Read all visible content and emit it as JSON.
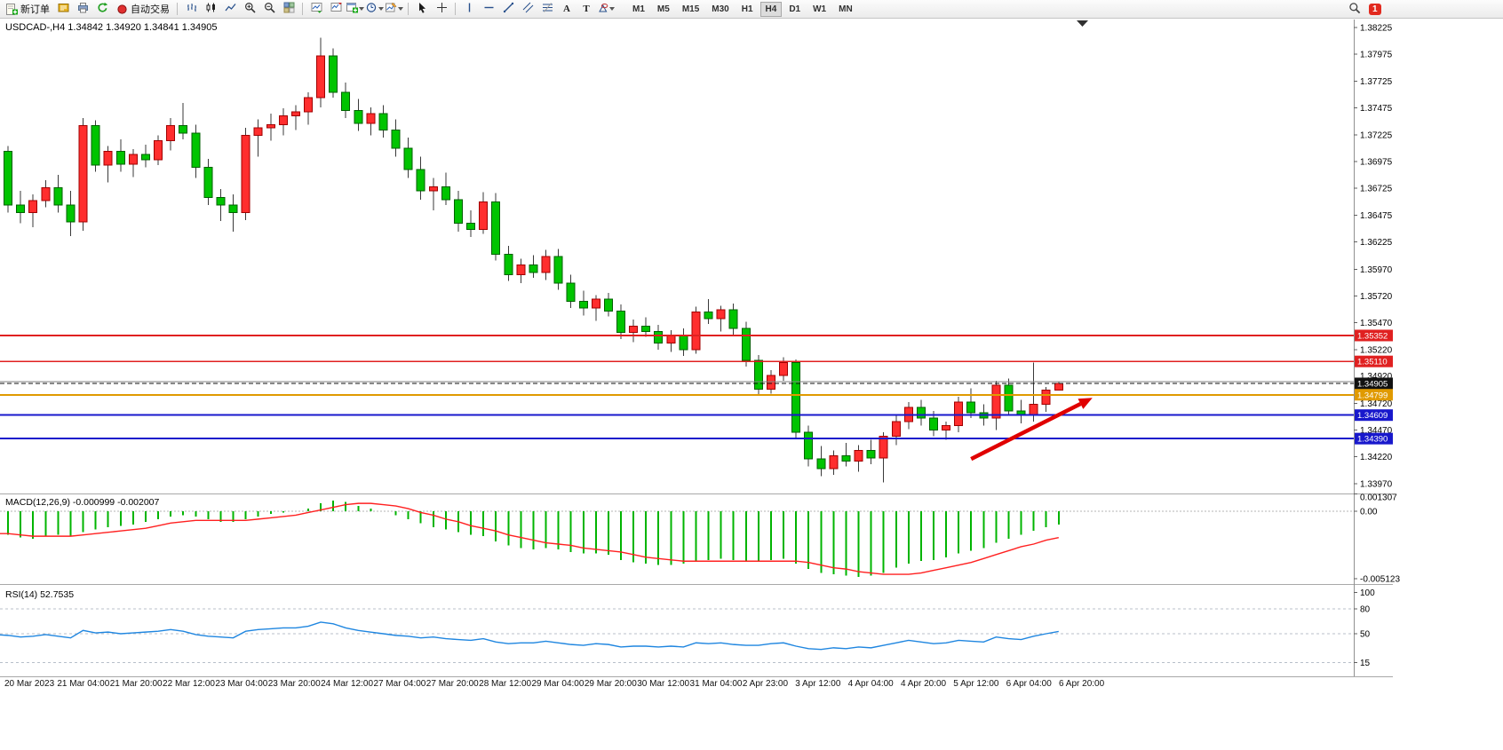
{
  "toolbar": {
    "new_order_label": "新订单",
    "auto_trading_label": "自动交易",
    "text_tool_glyph": "A",
    "label_tool_glyph": "T",
    "timeframes": [
      "M1",
      "M5",
      "M15",
      "M30",
      "H1",
      "H4",
      "D1",
      "W1",
      "MN"
    ],
    "active_timeframe": "H4",
    "notification_count": "1"
  },
  "chart_data": [
    {
      "type": "candlestick",
      "title": "USDCAD-,H4 1.34842 1.34920 1.34841 1.34905",
      "symbol": "USDCAD-",
      "timeframe": "H4",
      "ohlc_current": {
        "open": "1.34842",
        "high": "1.34920",
        "low": "1.34841",
        "close": "1.34905"
      },
      "up_color": "#ff2e2e",
      "up_edge": "#a00000",
      "down_color": "#00c400",
      "down_edge": "#006000",
      "ylim": [
        1.3394,
        1.3828
      ],
      "y_ticks": [
        "1.38225",
        "1.37975",
        "1.37725",
        "1.37475",
        "1.37225",
        "1.36975",
        "1.36725",
        "1.36475",
        "1.36225",
        "1.35970",
        "1.35720",
        "1.35470",
        "1.35220",
        "1.34720",
        "1.34470",
        "1.34220",
        "1.33970"
      ],
      "price_badges": [
        {
          "value": "1.35352",
          "bg": "#e02020",
          "fg": "#ffffff"
        },
        {
          "value": "1.35110",
          "bg": "#e02020",
          "fg": "#ffffff"
        },
        {
          "value": "1.34920",
          "bg": "",
          "fg": "#000000"
        },
        {
          "value": "1.34905",
          "bg": "#111111",
          "fg": "#ffffff"
        },
        {
          "value": "1.34799",
          "bg": "#e09a00",
          "fg": "#ffffff"
        },
        {
          "value": "1.34609",
          "bg": "#1818cc",
          "fg": "#ffffff"
        },
        {
          "value": "1.34390",
          "bg": "#1818cc",
          "fg": "#ffffff"
        }
      ],
      "levels": [
        {
          "price": 1.35352,
          "color": "#e02020",
          "style": "solid",
          "width": 1.6
        },
        {
          "price": 1.3511,
          "color": "#e02020",
          "style": "solid",
          "width": 1.6
        },
        {
          "price": 1.3492,
          "color": "#808080",
          "style": "solid",
          "width": 1
        },
        {
          "price": 1.34905,
          "color": "#111111",
          "style": "dashed",
          "width": 1.2
        },
        {
          "price": 1.34799,
          "color": "#e09a00",
          "style": "solid",
          "width": 2
        },
        {
          "price": 1.34609,
          "color": "#1818cc",
          "style": "solid",
          "width": 2
        },
        {
          "price": 1.3439,
          "color": "#1818cc",
          "style": "solid",
          "width": 2
        }
      ],
      "arrow": {
        "from_index": 78,
        "from_price": 1.342,
        "to_index": 87.7,
        "to_price": 1.3477,
        "color": "#e00000"
      },
      "x_labels": [
        "20 Mar 2023",
        "21 Mar 04:00",
        "21 Mar 20:00",
        "22 Mar 12:00",
        "23 Mar 04:00",
        "23 Mar 20:00",
        "24 Mar 12:00",
        "27 Mar 04:00",
        "27 Mar 20:00",
        "28 Mar 12:00",
        "29 Mar 04:00",
        "29 Mar 20:00",
        "30 Mar 12:00",
        "31 Mar 04:00",
        "2 Apr 23:00",
        "3 Apr 12:00",
        "4 Apr 04:00",
        "4 Apr 20:00",
        "5 Apr 12:00",
        "6 Apr 04:00",
        "6 Apr 20:00"
      ],
      "candles": [
        [
          1.3716,
          1.3721,
          1.3652,
          1.366
        ],
        [
          1.3707,
          1.3712,
          1.365,
          1.3657
        ],
        [
          1.3657,
          1.367,
          1.364,
          1.365
        ],
        [
          1.365,
          1.3667,
          1.3636,
          1.3661
        ],
        [
          1.3661,
          1.368,
          1.3655,
          1.3673
        ],
        [
          1.3673,
          1.3685,
          1.365,
          1.3657
        ],
        [
          1.3657,
          1.367,
          1.3628,
          1.3641
        ],
        [
          1.3641,
          1.3738,
          1.3633,
          1.3731
        ],
        [
          1.3731,
          1.3736,
          1.3688,
          1.3694
        ],
        [
          1.3694,
          1.3712,
          1.3678,
          1.3707
        ],
        [
          1.3707,
          1.3718,
          1.3688,
          1.3695
        ],
        [
          1.3695,
          1.3709,
          1.3683,
          1.3704
        ],
        [
          1.3704,
          1.3713,
          1.3692,
          1.3699
        ],
        [
          1.3699,
          1.3722,
          1.3694,
          1.3717
        ],
        [
          1.3717,
          1.3738,
          1.3708,
          1.3731
        ],
        [
          1.3731,
          1.3752,
          1.3718,
          1.3724
        ],
        [
          1.3724,
          1.3732,
          1.3682,
          1.3692
        ],
        [
          1.3692,
          1.37,
          1.3657,
          1.3664
        ],
        [
          1.3664,
          1.3672,
          1.3642,
          1.3657
        ],
        [
          1.3657,
          1.3667,
          1.3632,
          1.365
        ],
        [
          1.365,
          1.3729,
          1.3643,
          1.3722
        ],
        [
          1.3722,
          1.3737,
          1.3702,
          1.3729
        ],
        [
          1.3729,
          1.3742,
          1.3717,
          1.3732
        ],
        [
          1.3732,
          1.3747,
          1.3722,
          1.374
        ],
        [
          1.374,
          1.375,
          1.3727,
          1.3744
        ],
        [
          1.3744,
          1.3762,
          1.3732,
          1.3757
        ],
        [
          1.3757,
          1.3813,
          1.3748,
          1.3796
        ],
        [
          1.3796,
          1.3803,
          1.3757,
          1.3762
        ],
        [
          1.3762,
          1.3771,
          1.3738,
          1.3745
        ],
        [
          1.3745,
          1.3756,
          1.3726,
          1.3733
        ],
        [
          1.3733,
          1.3748,
          1.3722,
          1.3742
        ],
        [
          1.3742,
          1.375,
          1.372,
          1.3727
        ],
        [
          1.3727,
          1.3737,
          1.3702,
          1.371
        ],
        [
          1.371,
          1.372,
          1.3682,
          1.369
        ],
        [
          1.369,
          1.3702,
          1.3662,
          1.367
        ],
        [
          1.367,
          1.3682,
          1.3652,
          1.3674
        ],
        [
          1.3674,
          1.3687,
          1.3657,
          1.3662
        ],
        [
          1.3662,
          1.367,
          1.3632,
          1.364
        ],
        [
          1.364,
          1.3652,
          1.3627,
          1.3634
        ],
        [
          1.3634,
          1.3669,
          1.363,
          1.366
        ],
        [
          1.366,
          1.3668,
          1.3605,
          1.3611
        ],
        [
          1.3611,
          1.3619,
          1.3586,
          1.3592
        ],
        [
          1.3592,
          1.3607,
          1.3584,
          1.3601
        ],
        [
          1.3601,
          1.361,
          1.3589,
          1.3594
        ],
        [
          1.3594,
          1.3615,
          1.3587,
          1.3609
        ],
        [
          1.3609,
          1.3616,
          1.3578,
          1.3584
        ],
        [
          1.3584,
          1.3592,
          1.3561,
          1.3567
        ],
        [
          1.3567,
          1.3577,
          1.3554,
          1.3561
        ],
        [
          1.3561,
          1.3573,
          1.3549,
          1.3569
        ],
        [
          1.3569,
          1.3575,
          1.3553,
          1.3558
        ],
        [
          1.3558,
          1.3564,
          1.3532,
          1.3538
        ],
        [
          1.3538,
          1.355,
          1.3529,
          1.3544
        ],
        [
          1.3544,
          1.3552,
          1.3534,
          1.3539
        ],
        [
          1.3539,
          1.3545,
          1.3522,
          1.3528
        ],
        [
          1.3528,
          1.354,
          1.352,
          1.3535
        ],
        [
          1.3535,
          1.3542,
          1.3516,
          1.3522
        ],
        [
          1.3522,
          1.3562,
          1.3518,
          1.3557
        ],
        [
          1.3557,
          1.3569,
          1.3546,
          1.3551
        ],
        [
          1.3551,
          1.3563,
          1.3539,
          1.3559
        ],
        [
          1.3559,
          1.3565,
          1.3536,
          1.3542
        ],
        [
          1.3542,
          1.3548,
          1.3506,
          1.3512
        ],
        [
          1.3512,
          1.3517,
          1.3479,
          1.3485
        ],
        [
          1.3485,
          1.3503,
          1.3481,
          1.3498
        ],
        [
          1.3498,
          1.3515,
          1.3493,
          1.351
        ],
        [
          1.351,
          1.3513,
          1.3439,
          1.3445
        ],
        [
          1.3445,
          1.3451,
          1.3413,
          1.342
        ],
        [
          1.342,
          1.3432,
          1.3404,
          1.3411
        ],
        [
          1.3411,
          1.3428,
          1.3405,
          1.3423
        ],
        [
          1.3423,
          1.3435,
          1.3413,
          1.3418
        ],
        [
          1.3418,
          1.3433,
          1.3408,
          1.3428
        ],
        [
          1.3428,
          1.3438,
          1.3415,
          1.3421
        ],
        [
          1.3421,
          1.3445,
          1.3398,
          1.3441
        ],
        [
          1.3441,
          1.3461,
          1.3433,
          1.3455
        ],
        [
          1.3455,
          1.3473,
          1.3448,
          1.3468
        ],
        [
          1.3468,
          1.3475,
          1.3451,
          1.3458
        ],
        [
          1.3458,
          1.3465,
          1.3441,
          1.3447
        ],
        [
          1.3447,
          1.3455,
          1.3438,
          1.3451
        ],
        [
          1.3451,
          1.3478,
          1.3445,
          1.3473
        ],
        [
          1.3473,
          1.3486,
          1.3458,
          1.3463
        ],
        [
          1.3463,
          1.3471,
          1.3451,
          1.3458
        ],
        [
          1.3458,
          1.3493,
          1.3447,
          1.3489
        ],
        [
          1.3489,
          1.3495,
          1.3461,
          1.3465
        ],
        [
          1.3465,
          1.3475,
          1.3453,
          1.3461
        ],
        [
          1.3461,
          1.351,
          1.3455,
          1.3471
        ],
        [
          1.3471,
          1.3487,
          1.3464,
          1.34842
        ],
        [
          1.34842,
          1.3492,
          1.34841,
          1.34905
        ]
      ]
    },
    {
      "type": "bar",
      "label": "MACD(12,26,9) -0.000999 -0.002007",
      "main_value": "-0.000999",
      "signal_value": "-0.002007",
      "bar_color": "#00b400",
      "signal_color": "#ff2020",
      "axis_ticks": [
        "0.001307",
        "0.00",
        "-0.005123"
      ],
      "values": [
        -0.0017,
        -0.0018,
        -0.002,
        -0.0021,
        -0.0019,
        -0.0018,
        -0.0019,
        -0.0016,
        -0.0014,
        -0.0012,
        -0.0011,
        -0.001,
        -0.0008,
        -0.0006,
        -0.0004,
        -0.0003,
        -0.0004,
        -0.0006,
        -0.0008,
        -0.0008,
        -0.0006,
        -0.0004,
        -0.0002,
        -0.0001,
        0.0,
        0.0002,
        0.0006,
        0.0008,
        0.0007,
        0.0004,
        0.0002,
        0.0,
        -0.0003,
        -0.0006,
        -0.0009,
        -0.0012,
        -0.0014,
        -0.0016,
        -0.0018,
        -0.0019,
        -0.0023,
        -0.0026,
        -0.0028,
        -0.0029,
        -0.0028,
        -0.0029,
        -0.0031,
        -0.0032,
        -0.0032,
        -0.0033,
        -0.0037,
        -0.0039,
        -0.004,
        -0.0041,
        -0.0041,
        -0.004,
        -0.0038,
        -0.0037,
        -0.0036,
        -0.0037,
        -0.0038,
        -0.0038,
        -0.0037,
        -0.0036,
        -0.004,
        -0.0044,
        -0.0047,
        -0.0048,
        -0.0049,
        -0.005,
        -0.0049,
        -0.0047,
        -0.0043,
        -0.004,
        -0.0038,
        -0.0037,
        -0.0035,
        -0.0032,
        -0.003,
        -0.0028,
        -0.0024,
        -0.0021,
        -0.0018,
        -0.0015,
        -0.0012,
        -0.000999
      ],
      "signal": [
        -0.0017,
        -0.0017,
        -0.0018,
        -0.0019,
        -0.0019,
        -0.0019,
        -0.0019,
        -0.0018,
        -0.0017,
        -0.0016,
        -0.0015,
        -0.0014,
        -0.0013,
        -0.0011,
        -0.0009,
        -0.0008,
        -0.0007,
        -0.0007,
        -0.0007,
        -0.0007,
        -0.0007,
        -0.0006,
        -0.0005,
        -0.0004,
        -0.0003,
        -0.0001,
        0.0001,
        0.0003,
        0.0005,
        0.0006,
        0.0006,
        0.0005,
        0.0004,
        0.0002,
        -0.0001,
        -0.0003,
        -0.0006,
        -0.0008,
        -0.0011,
        -0.0013,
        -0.0015,
        -0.0018,
        -0.002,
        -0.0022,
        -0.0024,
        -0.0025,
        -0.0026,
        -0.0028,
        -0.0029,
        -0.003,
        -0.0031,
        -0.0033,
        -0.0035,
        -0.0036,
        -0.0037,
        -0.0038,
        -0.0038,
        -0.0038,
        -0.0038,
        -0.0038,
        -0.0038,
        -0.0038,
        -0.0038,
        -0.0038,
        -0.0038,
        -0.0039,
        -0.0041,
        -0.0043,
        -0.0044,
        -0.0046,
        -0.0047,
        -0.0048,
        -0.0048,
        -0.0048,
        -0.0047,
        -0.0045,
        -0.0043,
        -0.0041,
        -0.0039,
        -0.0036,
        -0.0033,
        -0.003,
        -0.0027,
        -0.0025,
        -0.0022,
        -0.002007
      ]
    },
    {
      "type": "line",
      "label": "RSI(14) 52.7535",
      "current_value": "52.7535",
      "line_color": "#1f86e0",
      "axis_ticks": [
        "100",
        "80",
        "50",
        "15"
      ],
      "levels": [
        80,
        50,
        15
      ],
      "values": [
        49,
        48,
        46,
        47,
        49,
        47,
        45,
        54,
        51,
        52,
        50,
        51,
        52,
        53,
        55,
        53,
        49,
        47,
        46,
        45,
        53,
        55,
        56,
        57,
        57,
        59,
        64,
        62,
        57,
        54,
        52,
        50,
        48,
        47,
        45,
        46,
        44,
        43,
        42,
        44,
        40,
        38,
        39,
        39,
        41,
        39,
        37,
        36,
        38,
        37,
        34,
        35,
        35,
        34,
        35,
        34,
        39,
        38,
        39,
        37,
        36,
        36,
        38,
        39,
        35,
        32,
        31,
        33,
        32,
        34,
        33,
        36,
        39,
        42,
        40,
        38,
        39,
        42,
        41,
        40,
        46,
        44,
        43,
        47,
        50,
        52.7535
      ]
    }
  ]
}
